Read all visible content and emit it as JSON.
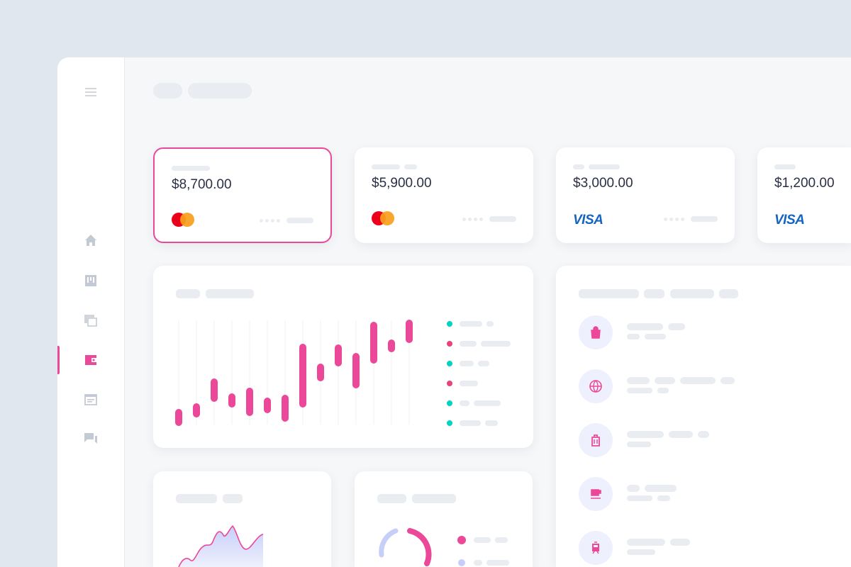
{
  "colors": {
    "accent": "#ec4899",
    "teal": "#00d4c0",
    "lavender": "#c7cff8"
  },
  "sidebar": {
    "items": [
      {
        "icon": "menu-icon"
      },
      {
        "icon": "home-icon"
      },
      {
        "icon": "board-icon"
      },
      {
        "icon": "table-icon"
      },
      {
        "icon": "wallet-icon",
        "active": true
      },
      {
        "icon": "calendar-icon"
      },
      {
        "icon": "chat-icon"
      }
    ]
  },
  "cards": [
    {
      "amount": "$8,700.00",
      "brand": "mastercard",
      "selected": true
    },
    {
      "amount": "$5,900.00",
      "brand": "mastercard"
    },
    {
      "amount": "$3,000.00",
      "brand": "VISA"
    },
    {
      "amount": "$1,200.00",
      "brand": "VISA"
    }
  ],
  "chart_data": [
    {
      "type": "bar",
      "subtype": "range",
      "ranges": [
        [
          0,
          20
        ],
        [
          12,
          28
        ],
        [
          34,
          63
        ],
        [
          26,
          42
        ],
        [
          14,
          50
        ],
        [
          18,
          36
        ],
        [
          6,
          40
        ],
        [
          26,
          112
        ],
        [
          63,
          84
        ],
        [
          84,
          111
        ],
        [
          53,
          99
        ],
        [
          88,
          143
        ],
        [
          104,
          118
        ],
        [
          117,
          146
        ]
      ]
    },
    {
      "type": "area"
    },
    {
      "type": "pie",
      "subtype": "donut"
    }
  ],
  "legend_dots": [
    "teal",
    "pink",
    "teal",
    "pink",
    "teal",
    "teal"
  ],
  "transactions": [
    {
      "icon": "shopping-bag-icon"
    },
    {
      "icon": "globe-icon"
    },
    {
      "icon": "luggage-icon"
    },
    {
      "icon": "coffee-icon"
    },
    {
      "icon": "train-icon"
    }
  ]
}
